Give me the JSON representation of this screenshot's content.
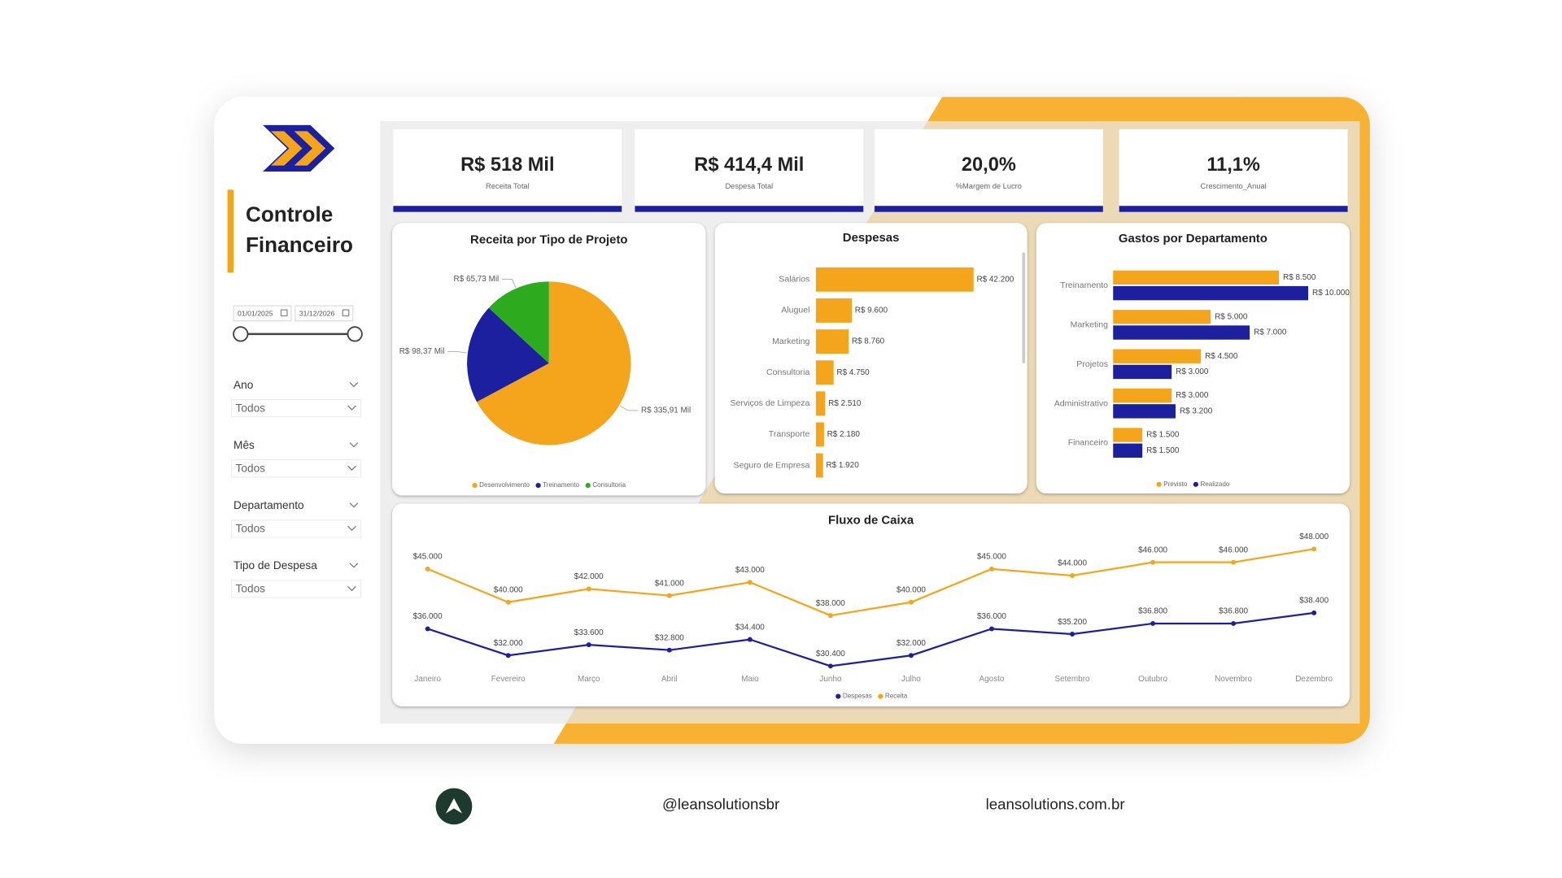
{
  "sidebar": {
    "title_lines": [
      "Controle",
      "Financeiro"
    ],
    "date_start": "01/01/2025",
    "date_end": "31/12/2026",
    "filters": [
      {
        "label": "Ano",
        "value": "Todos"
      },
      {
        "label": "Mês",
        "value": "Todos"
      },
      {
        "label": "Departamento",
        "value": "Todos"
      },
      {
        "label": "Tipo de Despesa",
        "value": "Todos"
      }
    ]
  },
  "kpis": [
    {
      "value": "R$ 518 Mil",
      "label": "Receita Total"
    },
    {
      "value": "R$ 414,4 Mil",
      "label": "Despesa Total"
    },
    {
      "value": "20,0%",
      "label": "%Margem de Lucro"
    },
    {
      "value": "11,1%",
      "label": "Crescimento_Anual"
    }
  ],
  "chart_data": [
    {
      "type": "pie",
      "title": "Receita por Tipo de Projeto",
      "categories": [
        "Desenvolvimento",
        "Treinamento",
        "Consultoria"
      ],
      "values": [
        335.91,
        98.37,
        65.73
      ],
      "value_labels": [
        "R$ 335,91 Mil",
        "R$ 98,37 Mil",
        "R$ 65,73 Mil"
      ],
      "colors": [
        "#F5A51C",
        "#1C1F9E",
        "#2EAA1F"
      ]
    },
    {
      "type": "hbar",
      "title": "Despesas",
      "categories": [
        "Salários",
        "Aluguel",
        "Marketing",
        "Consultoria",
        "Serviços de Limpeza",
        "Transporte",
        "Seguro de Empresa"
      ],
      "values": [
        42200,
        9600,
        8760,
        4750,
        2510,
        2180,
        1920
      ],
      "value_labels": [
        "R$ 42.200",
        "R$ 9.600",
        "R$ 8.760",
        "R$ 4.750",
        "R$ 2.510",
        "R$ 2.180",
        "R$ 1.920"
      ],
      "color": "#F5A51C"
    },
    {
      "type": "grouped_hbar",
      "title": "Gastos por Departamento",
      "categories": [
        "Treinamento",
        "Marketing",
        "Projetos",
        "Administrativo",
        "Financeiro"
      ],
      "series": [
        {
          "name": "Previsto",
          "color": "#F5A51C",
          "values": [
            8500,
            5000,
            4500,
            3000,
            1500
          ],
          "value_labels": [
            "R$ 8.500",
            "R$ 5.000",
            "R$ 4.500",
            "R$ 3.000",
            "R$ 1.500"
          ]
        },
        {
          "name": "Realizado",
          "color": "#1C1F9E",
          "values": [
            10000,
            7000,
            3000,
            3200,
            1500
          ],
          "value_labels": [
            "R$ 10.000",
            "R$ 7.000",
            "R$ 3.000",
            "R$ 3.200",
            "R$ 1.500"
          ]
        }
      ]
    },
    {
      "type": "line",
      "title": "Fluxo de Caixa",
      "categories": [
        "Janeiro",
        "Fevereiro",
        "Março",
        "Abril",
        "Maio",
        "Junho",
        "Julho",
        "Agosto",
        "Setembro",
        "Outubro",
        "Novembro",
        "Dezembro"
      ],
      "series": [
        {
          "name": "Despesas",
          "color": "#1C1F9E",
          "values": [
            36000,
            32000,
            33600,
            32800,
            34400,
            30400,
            32000,
            36000,
            35200,
            36800,
            36800,
            38400
          ],
          "value_labels": [
            "$36.000",
            "$32.000",
            "$33.600",
            "$32.800",
            "$34.400",
            "$30.400",
            "$32.000",
            "$36.000",
            "$35.200",
            "$36.800",
            "$36.800",
            "$38.400"
          ]
        },
        {
          "name": "Receita",
          "color": "#F5A51C",
          "values": [
            45000,
            40000,
            42000,
            41000,
            43000,
            38000,
            40000,
            45000,
            44000,
            46000,
            46000,
            48000
          ],
          "value_labels": [
            "$45.000",
            "$40.000",
            "$42.000",
            "$41.000",
            "$43.000",
            "$38.000",
            "$40.000",
            "$45.000",
            "$44.000",
            "$46.000",
            "$46.000",
            "$48.000"
          ]
        }
      ]
    }
  ],
  "footer": {
    "handle": "@leansolutionsbr",
    "site": "leansolutions.com.br"
  }
}
